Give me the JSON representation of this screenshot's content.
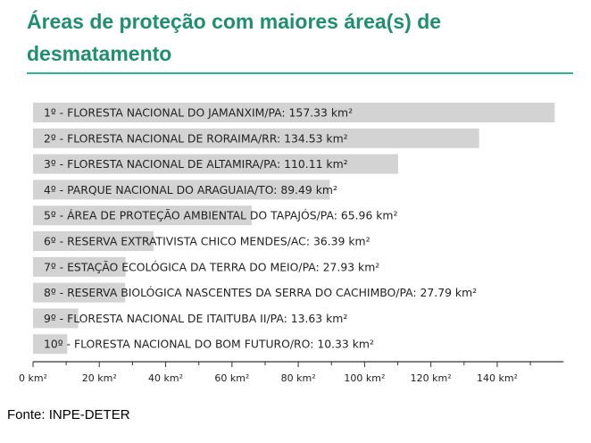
{
  "title": "Áreas de proteção com maiores área(s) de desmatamento",
  "source": "Fonte: INPE-DETER",
  "colors": {
    "title": "#1f8f70",
    "rule": "#2db38d",
    "bar": "#d3d3d3",
    "label": "#222222",
    "axis": "#333333"
  },
  "chart_data": {
    "type": "bar",
    "orientation": "horizontal",
    "categories": [
      "1º - FLORESTA NACIONAL DO JAMANXIM/PA: 157.33 km²",
      "2º - FLORESTA NACIONAL DE RORAIMA/RR: 134.53 km²",
      "3º - FLORESTA NACIONAL DE ALTAMIRA/PA: 110.11 km²",
      "4º - PARQUE NACIONAL DO ARAGUAIA/TO: 89.49 km²",
      "5º - ÁREA DE PROTEÇÃO AMBIENTAL DO TAPAJÓS/PA: 65.96 km²",
      "6º - RESERVA EXTRATIVISTA CHICO MENDES/AC: 36.39 km²",
      "7º - ESTAÇÃO ECOLÓGICA DA TERRA DO MEIO/PA: 27.93 km²",
      "8º - RESERVA BIOLÓGICA NASCENTES DA SERRA DO CACHIMBO/PA: 27.79 km²",
      "9º - FLORESTA NACIONAL DE ITAITUBA II/PA: 13.63 km²",
      "10º - FLORESTA NACIONAL DO BOM FUTURO/RO: 10.33 km²"
    ],
    "values": [
      157.33,
      134.53,
      110.11,
      89.49,
      65.96,
      36.39,
      27.93,
      27.79,
      13.63,
      10.33
    ],
    "xlim": [
      0,
      160
    ],
    "xticks": [
      0,
      20,
      40,
      60,
      80,
      100,
      120,
      140
    ],
    "xtick_labels": [
      "0 km²",
      "20 km²",
      "40 km²",
      "60 km²",
      "80 km²",
      "100 km²",
      "120 km²",
      "140 km²"
    ],
    "grid": false
  }
}
